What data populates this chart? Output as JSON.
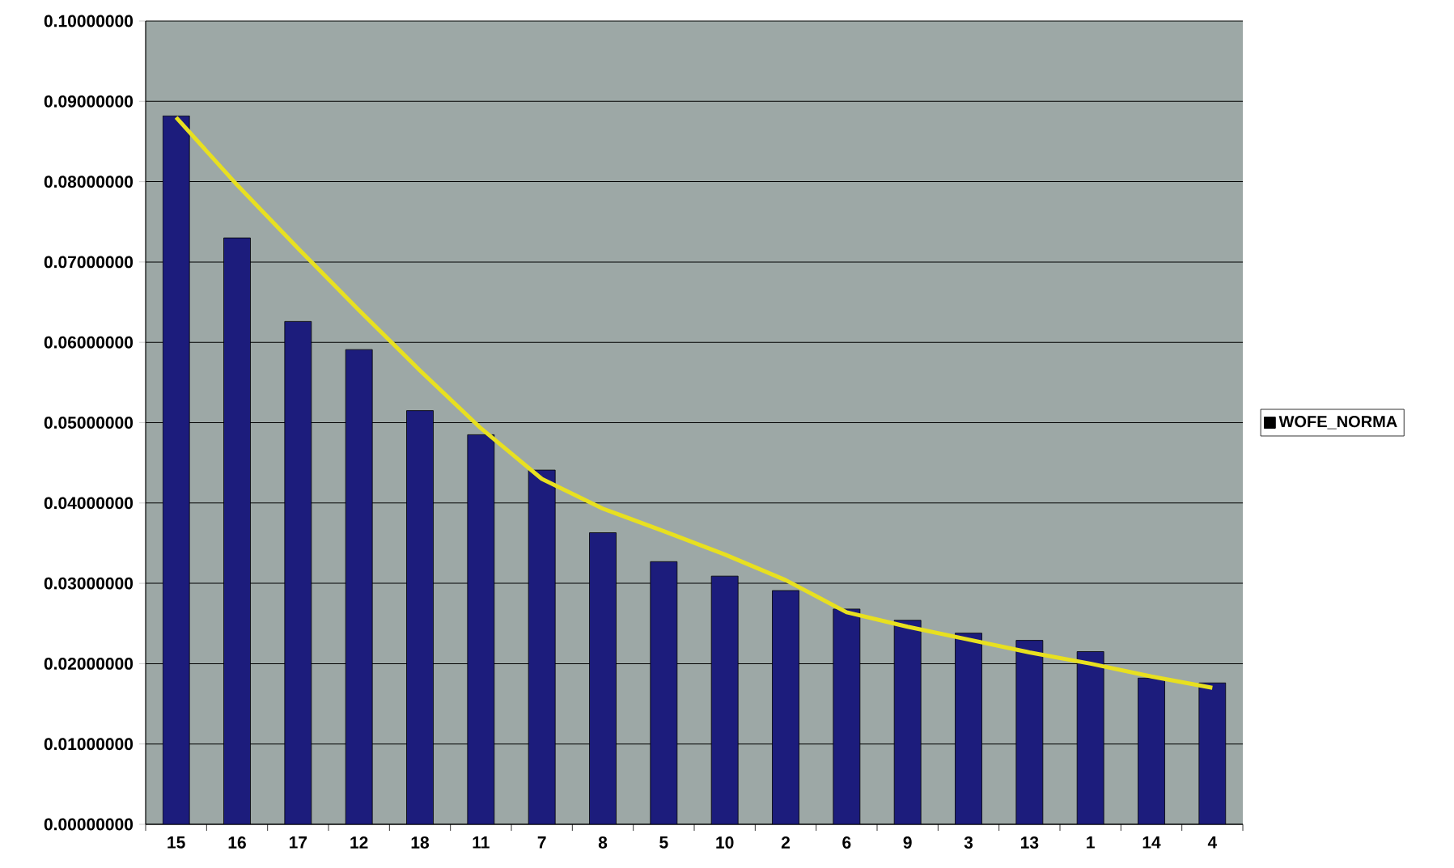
{
  "chart_data": {
    "type": "bar",
    "categories": [
      "15",
      "16",
      "17",
      "12",
      "18",
      "11",
      "7",
      "8",
      "5",
      "10",
      "2",
      "6",
      "9",
      "3",
      "13",
      "1",
      "14",
      "4"
    ],
    "series": [
      {
        "name": "WOFE_NORMA",
        "color": "#1c1c7c",
        "values": [
          0.0882,
          0.073,
          0.0626,
          0.0591,
          0.0515,
          0.0485,
          0.0441,
          0.0363,
          0.0327,
          0.0309,
          0.0291,
          0.0268,
          0.0254,
          0.0238,
          0.0229,
          0.0215,
          0.0182,
          0.0176
        ]
      },
      {
        "type": "line",
        "color": "#e8e020",
        "values": [
          0.088,
          0.0796,
          0.0717,
          0.064,
          0.0565,
          0.0493,
          0.043,
          0.0393,
          0.0365,
          0.0336,
          0.0304,
          0.0264,
          0.0246,
          0.023,
          0.0214,
          0.02,
          0.0184,
          0.017
        ]
      }
    ],
    "ylim": [
      0,
      0.1
    ],
    "yticks": [
      {
        "value": 0,
        "label": "0.00000000"
      },
      {
        "value": 0.01,
        "label": "0.01000000"
      },
      {
        "value": 0.02,
        "label": "0.02000000"
      },
      {
        "value": 0.03,
        "label": "0.03000000"
      },
      {
        "value": 0.04,
        "label": "0.04000000"
      },
      {
        "value": 0.05,
        "label": "0.05000000"
      },
      {
        "value": 0.06,
        "label": "0.06000000"
      },
      {
        "value": 0.07,
        "label": "0.07000000"
      },
      {
        "value": 0.08,
        "label": "0.08000000"
      },
      {
        "value": 0.09,
        "label": "0.09000000"
      },
      {
        "value": 0.1,
        "label": "0.10000000"
      }
    ],
    "grid": "y",
    "legend": "right"
  }
}
